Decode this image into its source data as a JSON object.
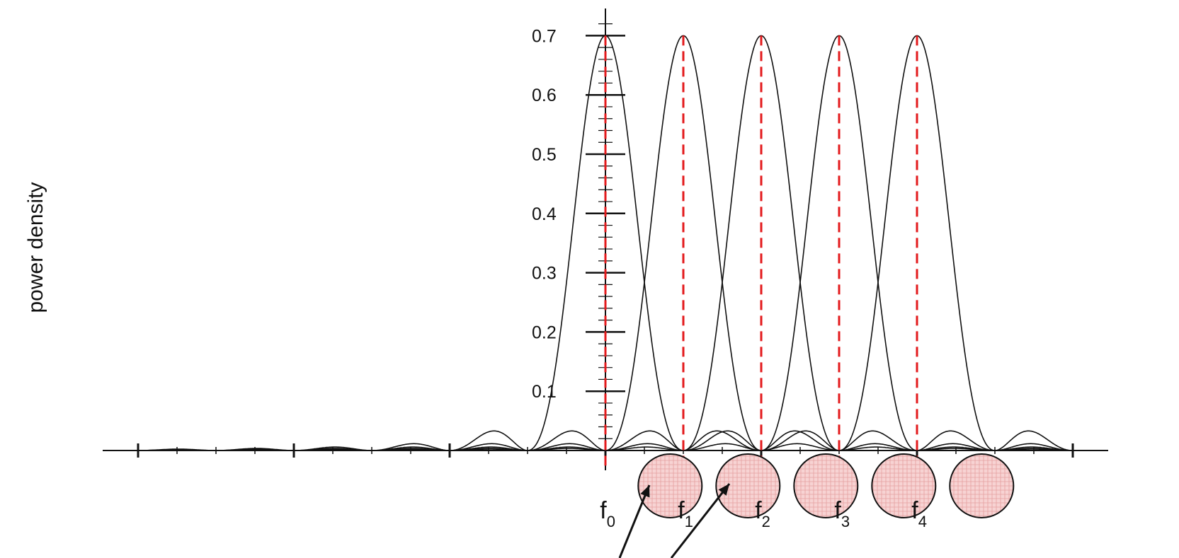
{
  "chart_data": {
    "type": "line",
    "title": "",
    "xlabel": "",
    "ylabel": "power density",
    "ylim": [
      0,
      0.7
    ],
    "y_ticks": [
      0.1,
      0.2,
      0.3,
      0.4,
      0.5,
      0.6,
      0.7
    ],
    "y_tick_labels": [
      "0.1",
      "0.2",
      "0.3",
      "0.4",
      "0.5",
      "0.6",
      "0.7"
    ],
    "xlim": [
      -6,
      6
    ],
    "subcarrier_spacing": 1,
    "subcarrier_centers": [
      0,
      1,
      2,
      3,
      4
    ],
    "peak_value": 0.7,
    "curve_shape": "sinc-squared",
    "curve_color": "#111111",
    "peak_marker_color": "#e31a1c",
    "peak_marker_style": "dashed",
    "subcarrier_labels": [
      {
        "base": "f",
        "index": "0"
      },
      {
        "base": "f",
        "index": "1"
      },
      {
        "base": "f",
        "index": "2"
      },
      {
        "base": "f",
        "index": "3"
      },
      {
        "base": "f",
        "index": "4"
      }
    ],
    "subcarrier_circle_count": 5,
    "subcarrier_circle_fill": "#f7d3d3",
    "subcarrier_circle_hatch": "#e6a0a0",
    "grid": false,
    "legend": "none"
  }
}
